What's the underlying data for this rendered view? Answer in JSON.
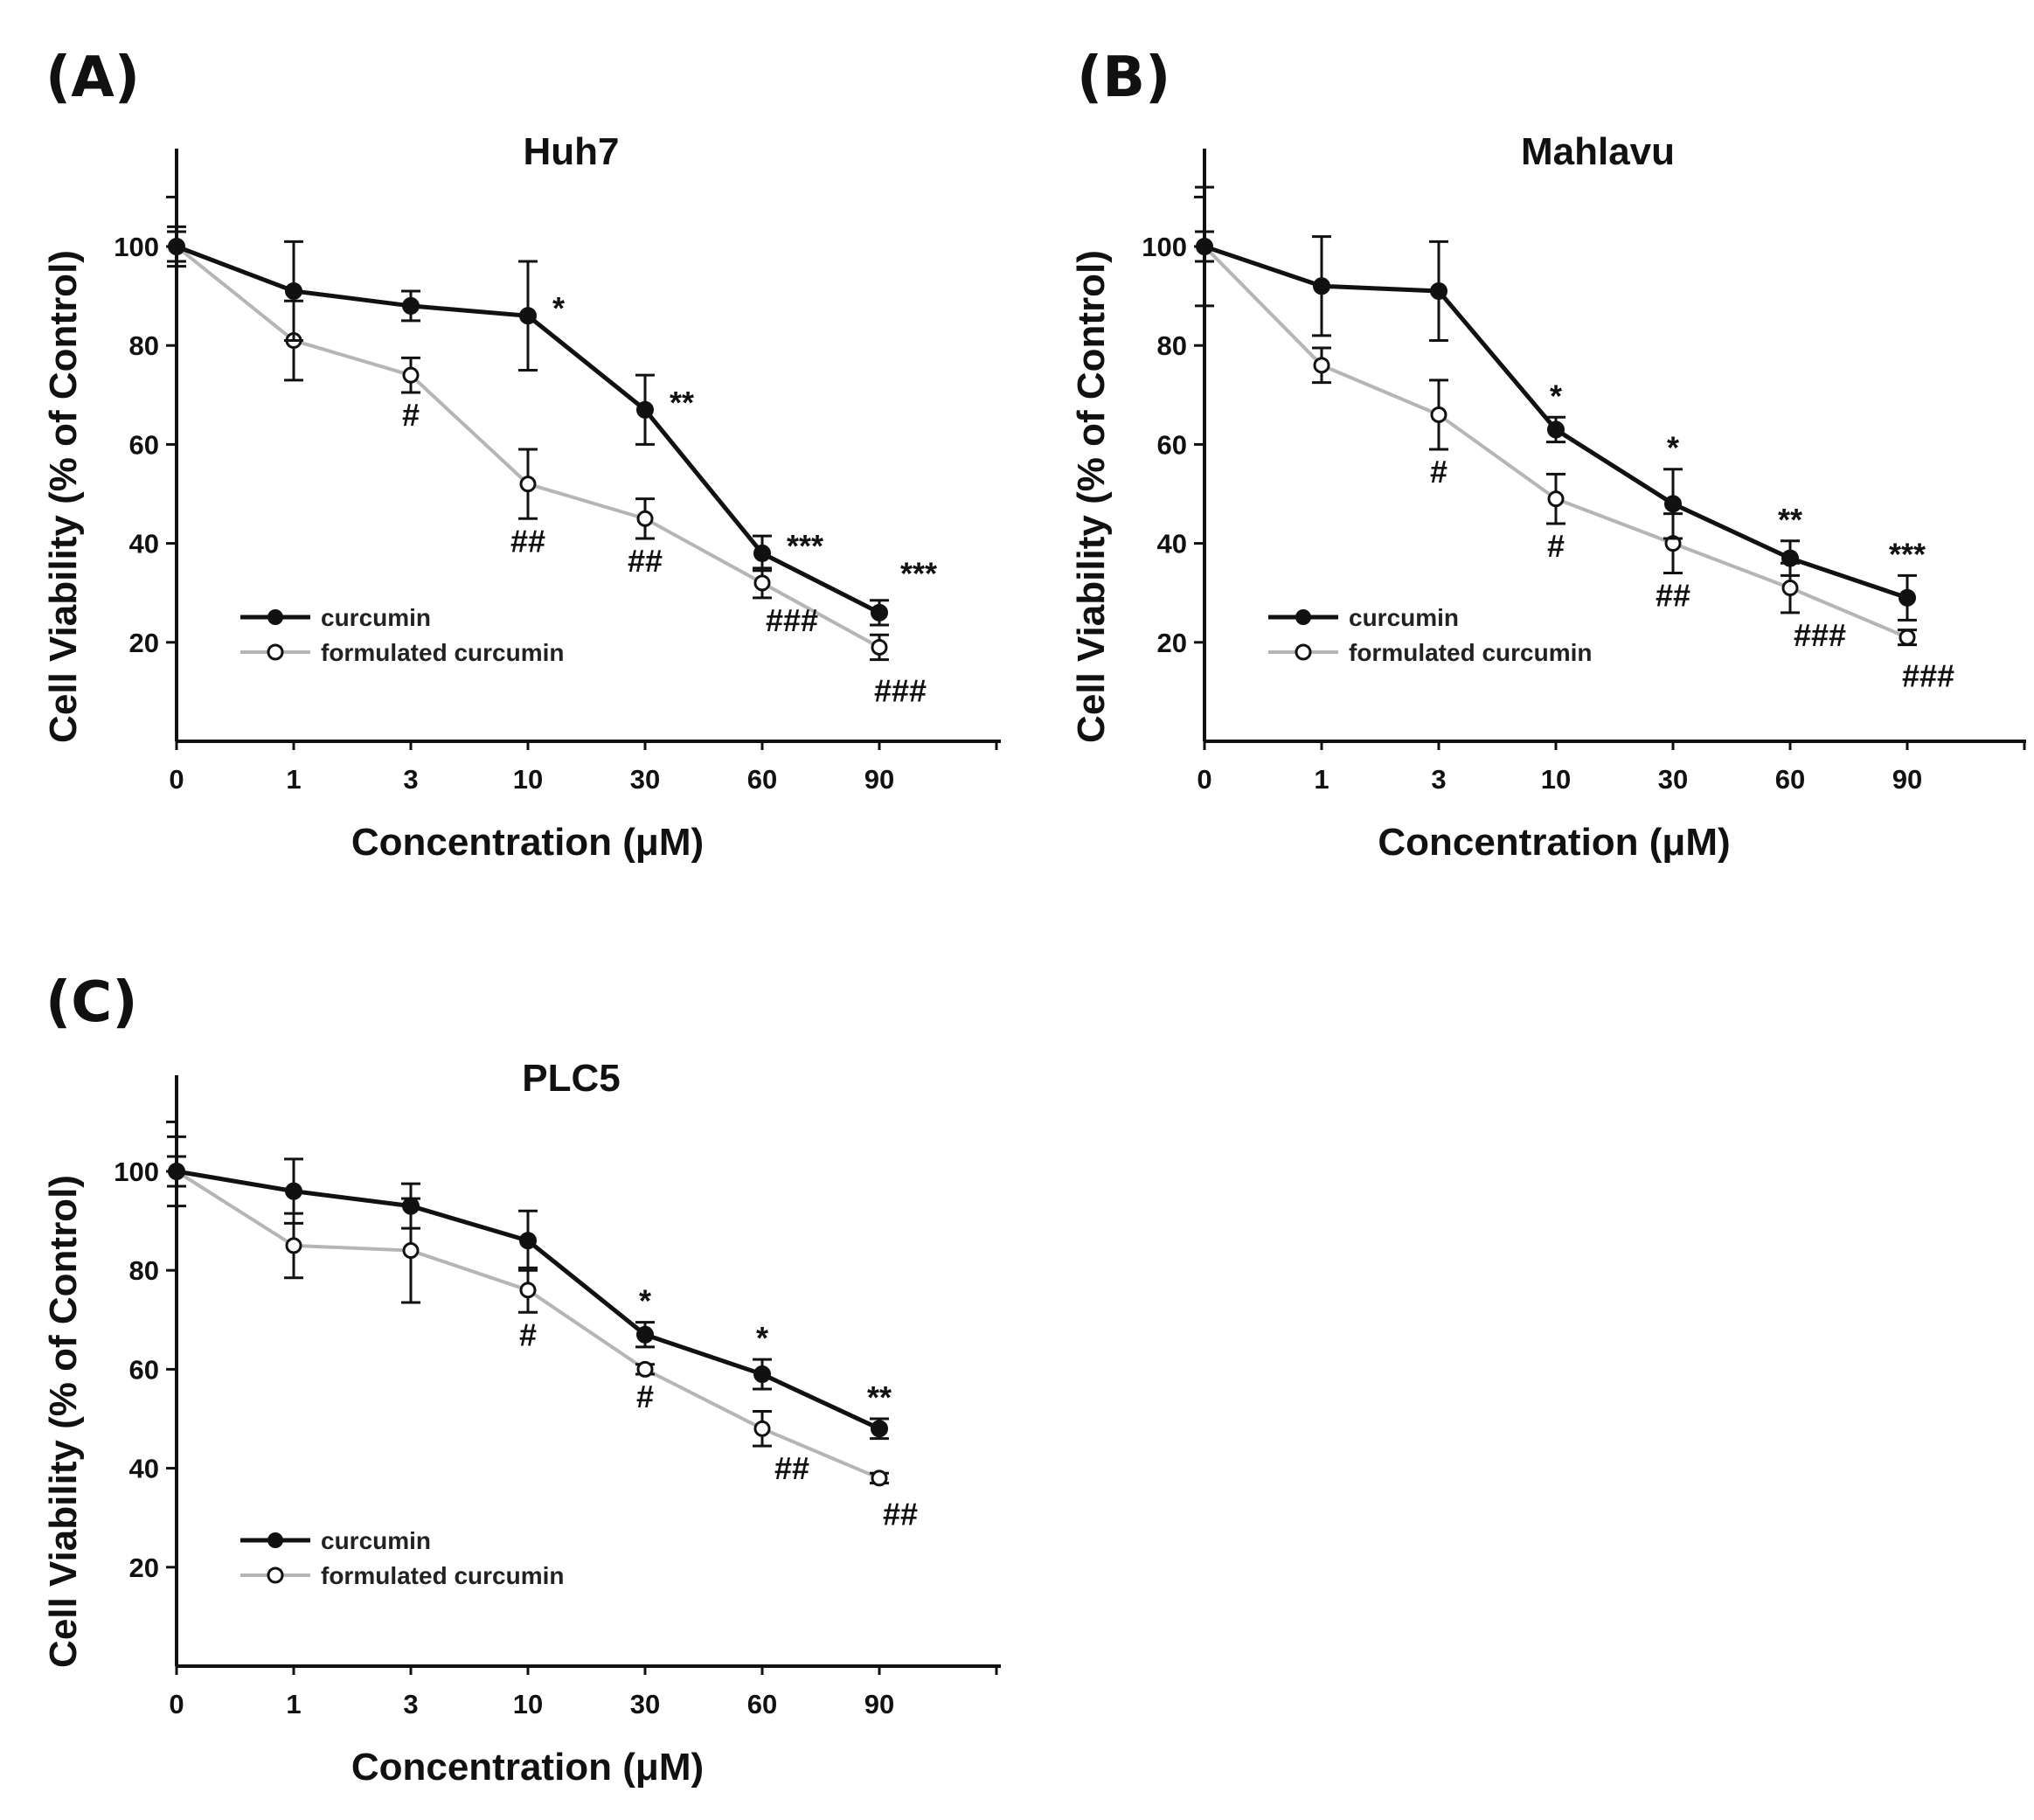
{
  "chart_data": [
    {
      "type": "line",
      "panel_label": "(A)",
      "title": "Huh7",
      "xlabel": "Concentration (μM)",
      "ylabel": "Cell Viability (% of Control)",
      "categories": [
        "0",
        "1",
        "3",
        "10",
        "30",
        "60",
        "90"
      ],
      "ylim": [
        0,
        120
      ],
      "yticks": [
        "20",
        "40",
        "60",
        "80",
        "100"
      ],
      "legend": [
        "curcumin",
        "formulated curcumin"
      ],
      "series": [
        {
          "name": "curcumin",
          "values": [
            100,
            91,
            88,
            86,
            67,
            38,
            26
          ],
          "errors": [
            4,
            10,
            3,
            11,
            7,
            3.5,
            2.5
          ],
          "annotations": [
            "",
            "",
            "",
            "*",
            "**",
            "***",
            "***"
          ]
        },
        {
          "name": "formulated curcumin",
          "values": [
            100,
            81,
            74,
            52,
            45,
            32,
            19
          ],
          "errors": [
            3,
            8,
            3.5,
            7,
            4,
            3,
            2.5
          ],
          "annotations": [
            "",
            "",
            "#",
            "##",
            "##",
            "###",
            "###"
          ]
        }
      ]
    },
    {
      "type": "line",
      "panel_label": "(B)",
      "title": "Mahlavu",
      "xlabel": "Concentration (μM)",
      "ylabel": "Cell Viability (% of Control)",
      "categories": [
        "0",
        "1",
        "3",
        "10",
        "30",
        "60",
        "90"
      ],
      "ylim": [
        0,
        120
      ],
      "yticks": [
        "20",
        "40",
        "60",
        "80",
        "100"
      ],
      "legend": [
        "curcumin",
        "formulated curcumin"
      ],
      "series": [
        {
          "name": "curcumin",
          "values": [
            100,
            92,
            91,
            63,
            48,
            37,
            29
          ],
          "errors": [
            12,
            10,
            10,
            2.5,
            7,
            3.5,
            4.5
          ],
          "annotations": [
            "",
            "",
            "",
            "*",
            "*",
            "**",
            "***"
          ]
        },
        {
          "name": "formulated curcumin",
          "values": [
            100,
            76,
            66,
            49,
            40,
            31,
            21
          ],
          "errors": [
            3,
            3.5,
            7,
            5,
            6,
            5,
            1.5
          ],
          "annotations": [
            "",
            "",
            "#",
            "#",
            "##",
            "###",
            "###"
          ]
        }
      ]
    },
    {
      "type": "line",
      "panel_label": "(C)",
      "title": "PLC5",
      "xlabel": "Concentration (μM)",
      "ylabel": "Cell Viability (% of Control)",
      "categories": [
        "0",
        "1",
        "3",
        "10",
        "30",
        "60",
        "90"
      ],
      "ylim": [
        0,
        120
      ],
      "yticks": [
        "20",
        "40",
        "60",
        "80",
        "100"
      ],
      "legend": [
        "curcumin",
        "formulated curcumin"
      ],
      "series": [
        {
          "name": "curcumin",
          "values": [
            100,
            96,
            93,
            86,
            67,
            59,
            48
          ],
          "errors": [
            7,
            6.5,
            4.5,
            6,
            2.5,
            3,
            2
          ],
          "annotations": [
            "",
            "",
            "",
            "",
            "*",
            "*",
            "**"
          ]
        },
        {
          "name": "formulated curcumin",
          "values": [
            100,
            85,
            84,
            76,
            60,
            48,
            38
          ],
          "errors": [
            3,
            6.5,
            10.5,
            4.5,
            1,
            3.5,
            1
          ],
          "annotations": [
            "",
            "",
            "",
            "#",
            "#",
            "##",
            "##"
          ]
        }
      ]
    }
  ]
}
